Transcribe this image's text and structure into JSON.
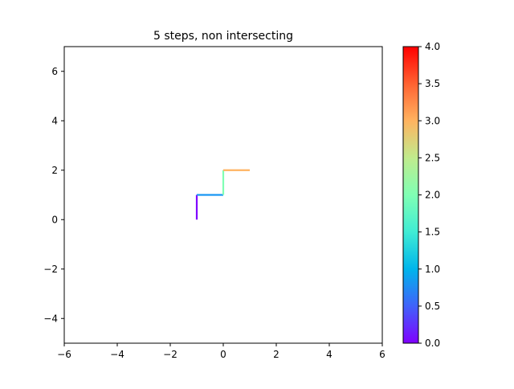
{
  "chart_data": {
    "type": "line",
    "title": "5 steps, non intersecting",
    "xlabel": "",
    "ylabel": "",
    "xlim": [
      -6,
      6
    ],
    "ylim": [
      -5,
      7
    ],
    "xticks": [
      -6,
      -4,
      -2,
      0,
      2,
      4,
      6
    ],
    "yticks": [
      -4,
      -2,
      0,
      2,
      4,
      6
    ],
    "xtick_labels": [
      "−6",
      "−4",
      "−2",
      "0",
      "2",
      "4",
      "6"
    ],
    "ytick_labels": [
      "−4",
      "−2",
      "0",
      "2",
      "4",
      "6"
    ],
    "grid": false,
    "points": [
      {
        "x": -1,
        "y": 0
      },
      {
        "x": -1,
        "y": 1
      },
      {
        "x": 0,
        "y": 1
      },
      {
        "x": 0,
        "y": 2
      },
      {
        "x": 1,
        "y": 2
      }
    ],
    "segment_values": [
      0,
      1,
      2,
      3
    ],
    "segment_colors": [
      "#8000ff",
      "#1996f3",
      "#80ffb4",
      "#ffb360"
    ],
    "colorbar": {
      "colormap": "rainbow",
      "range": [
        0,
        4
      ],
      "ticks": [
        0.0,
        0.5,
        1.0,
        1.5,
        2.0,
        2.5,
        3.0,
        3.5,
        4.0
      ],
      "tick_labels": [
        "0.0",
        "0.5",
        "1.0",
        "1.5",
        "2.0",
        "2.5",
        "3.0",
        "3.5",
        "4.0"
      ]
    }
  }
}
